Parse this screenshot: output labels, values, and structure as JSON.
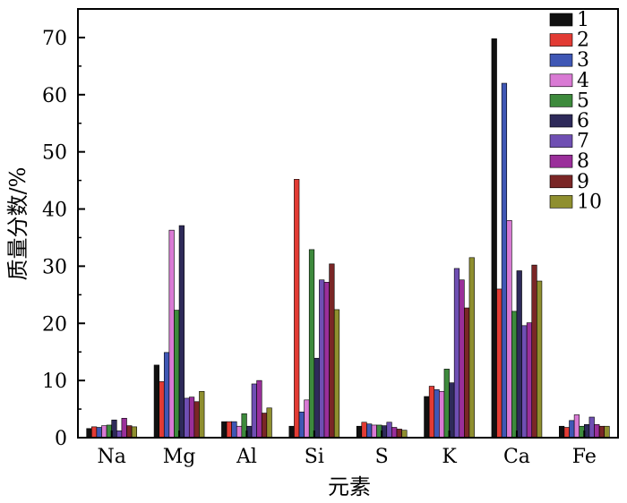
{
  "chart_data": {
    "type": "bar",
    "title": "",
    "xlabel": "元素",
    "ylabel": "质量分数/%",
    "ylim": [
      0,
      75
    ],
    "yticks": [
      0,
      10,
      20,
      30,
      40,
      50,
      60,
      70
    ],
    "grid": false,
    "legend_position": "top-right",
    "categories": [
      "Na",
      "Mg",
      "Al",
      "Si",
      "S",
      "K",
      "Ca",
      "Fe"
    ],
    "series": [
      {
        "name": "1",
        "color": "#111111",
        "values": [
          1.6,
          12.7,
          2.8,
          2.0,
          2.0,
          7.2,
          69.8,
          2.0
        ]
      },
      {
        "name": "2",
        "color": "#e23b34",
        "values": [
          1.9,
          9.8,
          2.8,
          45.2,
          2.7,
          9.0,
          26.0,
          1.8
        ]
      },
      {
        "name": "3",
        "color": "#3f57b5",
        "values": [
          1.8,
          14.9,
          2.8,
          4.5,
          2.4,
          8.4,
          62.0,
          3.0
        ]
      },
      {
        "name": "4",
        "color": "#d97ad4",
        "values": [
          2.1,
          36.3,
          2.0,
          6.6,
          2.2,
          8.1,
          38.0,
          4.0
        ]
      },
      {
        "name": "5",
        "color": "#3d8a3c",
        "values": [
          2.2,
          22.3,
          4.2,
          32.9,
          2.2,
          12.0,
          22.1,
          2.0
        ]
      },
      {
        "name": "6",
        "color": "#2e2a5a",
        "values": [
          3.1,
          37.1,
          2.0,
          13.9,
          2.1,
          9.6,
          29.2,
          2.3
        ]
      },
      {
        "name": "7",
        "color": "#6f4fb3",
        "values": [
          1.2,
          6.9,
          9.4,
          27.6,
          2.7,
          29.6,
          19.6,
          3.6
        ]
      },
      {
        "name": "8",
        "color": "#9a2f9a",
        "values": [
          3.4,
          7.1,
          10.0,
          27.2,
          1.8,
          27.6,
          20.1,
          2.3
        ]
      },
      {
        "name": "9",
        "color": "#7a2626",
        "values": [
          2.1,
          6.3,
          4.3,
          30.4,
          1.5,
          22.7,
          30.2,
          2.0
        ]
      },
      {
        "name": "10",
        "color": "#8f8f2f",
        "values": [
          1.9,
          8.1,
          5.2,
          22.4,
          1.3,
          31.5,
          27.4,
          2.0
        ]
      }
    ]
  }
}
